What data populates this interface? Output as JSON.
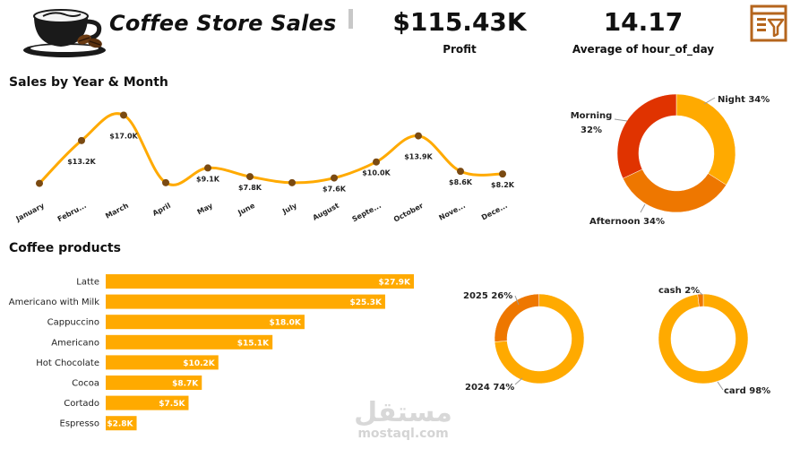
{
  "header": {
    "title": "Coffee Store Sales",
    "kpis": [
      {
        "value": "$115.43K",
        "label": "Profit"
      },
      {
        "value": "14.17",
        "label": "Average of hour_of_day"
      }
    ]
  },
  "colors": {
    "amber": "#FFAA00",
    "orange": "#EE7700",
    "red": "#E03300",
    "dark_brown": "#8B4A0E",
    "point": "#7A4A12",
    "filter_icon": "#B5651D"
  },
  "icons": {
    "logo": "coffee-cup-logo-icon",
    "filter": "filter-pane-icon"
  },
  "watermark": {
    "arabic": "مستقل",
    "latin": "mostaql.com"
  },
  "chart_data": [
    {
      "type": "line",
      "title": "Sales by Year & Month",
      "categories": [
        "January",
        "Febru...",
        "March",
        "April",
        "May",
        "June",
        "July",
        "August",
        "Septe...",
        "October",
        "Nove...",
        "Dece..."
      ],
      "values": [
        6.8,
        13.2,
        17.0,
        6.9,
        9.1,
        7.8,
        6.9,
        7.6,
        10.0,
        13.9,
        8.6,
        8.2
      ],
      "data_labels": [
        "",
        "$13.2K",
        "$17.0K",
        "",
        "$9.1K",
        "$7.8K",
        "",
        "$7.6K",
        "$10.0K",
        "$13.9K",
        "$8.6K",
        "$8.2K"
      ],
      "ylim": [
        5,
        18
      ]
    },
    {
      "type": "pie",
      "subtype": "donut",
      "slices": [
        {
          "name": "Night",
          "value": 34,
          "label": "Night 34%"
        },
        {
          "name": "Afternoon",
          "value": 34,
          "label": "Afternoon 34%"
        },
        {
          "name": "Morning",
          "value": 32,
          "label_top": "Morning",
          "label_bottom": "32%"
        }
      ]
    },
    {
      "type": "bar",
      "orientation": "horizontal",
      "title": "Coffee products",
      "categories": [
        "Latte",
        "Americano with Milk",
        "Cappuccino",
        "Americano",
        "Hot Chocolate",
        "Cocoa",
        "Cortado",
        "Espresso"
      ],
      "values": [
        27.9,
        25.3,
        18.0,
        15.1,
        10.2,
        8.7,
        7.5,
        2.8
      ],
      "data_labels": [
        "$27.9K",
        "$25.3K",
        "$18.0K",
        "$15.1K",
        "$10.2K",
        "$8.7K",
        "$7.5K",
        "$2.8K"
      ]
    },
    {
      "type": "pie",
      "subtype": "donut",
      "slices": [
        {
          "name": "2024",
          "value": 74,
          "label": "2024 74%"
        },
        {
          "name": "2025",
          "value": 26,
          "label": "2025 26%"
        }
      ]
    },
    {
      "type": "pie",
      "subtype": "donut",
      "slices": [
        {
          "name": "card",
          "value": 98,
          "label": "card 98%"
        },
        {
          "name": "cash",
          "value": 2,
          "label": "cash 2%"
        }
      ]
    }
  ]
}
